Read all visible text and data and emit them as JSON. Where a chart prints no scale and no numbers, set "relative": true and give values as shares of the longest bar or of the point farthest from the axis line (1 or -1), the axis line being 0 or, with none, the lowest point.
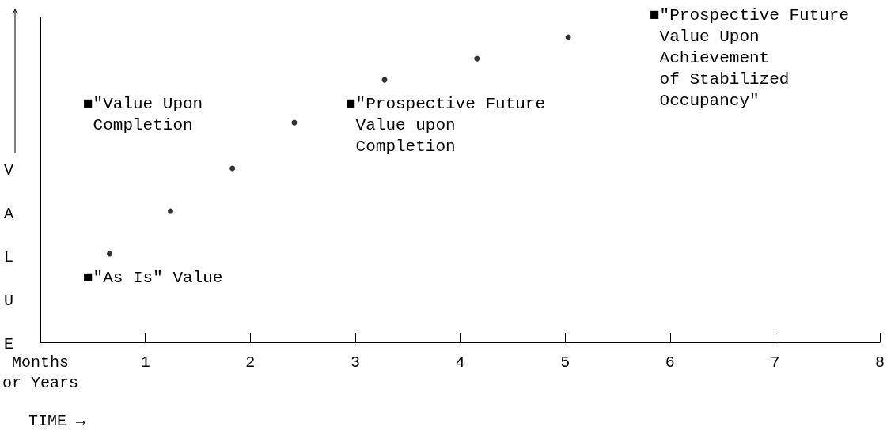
{
  "chart_data": {
    "type": "scatter",
    "xlabel": "TIME →",
    "ylabel": "VALUE",
    "x": [
      0.66,
      1.24,
      1.83,
      2.42,
      3.28,
      4.16,
      5.03
    ],
    "values": [
      0.29,
      0.43,
      0.57,
      0.72,
      0.86,
      0.93,
      1
    ],
    "relative": true,
    "color": "#000000",
    "marker": "circle",
    "xlim": [
      0,
      8
    ],
    "xticks": [
      {
        "value": 0,
        "label": "Months\nor Years"
      },
      1,
      2,
      3,
      4,
      5,
      6,
      7,
      8
    ],
    "tick_labels": "x",
    "grid": false,
    "annotations": [
      "■\"Value Upon\n Completion",
      "■\"As Is\" Value",
      "■\"Prospective Future\n Value upon\n Completion",
      "■\"Prospective Future\n Value Upon\n Achievement\n of Stabilized\n Occupancy\""
    ]
  }
}
